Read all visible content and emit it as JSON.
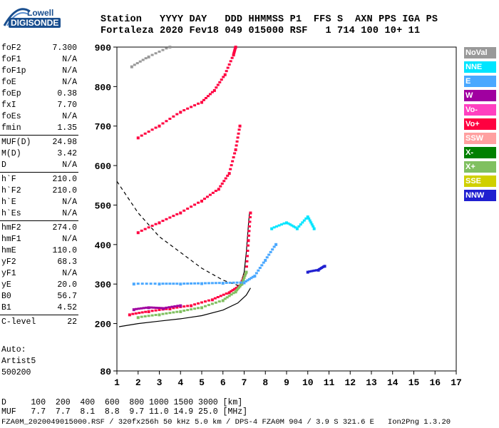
{
  "logo": {
    "line1": "Lowell",
    "line2": "DIGISONDE"
  },
  "header": {
    "line1": "Station   YYYY DAY   DDD HHMMSS P1  FFS S  AXN PPS IGA PS",
    "line2": "Fortaleza 2020 Fev18 049 015000 RSF   1 714 100 10+ 11"
  },
  "params": [
    {
      "name": "foF2",
      "value": "7.300"
    },
    {
      "name": "foF1",
      "value": "N/A"
    },
    {
      "name": "foF1p",
      "value": "N/A"
    },
    {
      "name": "foE",
      "value": "N/A"
    },
    {
      "name": "foEp",
      "value": "0.38"
    },
    {
      "name": "fxI",
      "value": "7.70"
    },
    {
      "name": "foEs",
      "value": "N/A"
    },
    {
      "name": "fmin",
      "value": "1.35"
    },
    {
      "name": "MUF(D)",
      "value": "24.98"
    },
    {
      "name": "M(D)",
      "value": "3.42"
    },
    {
      "name": "D",
      "value": "N/A"
    },
    {
      "name": "h`F",
      "value": "210.0"
    },
    {
      "name": "h`F2",
      "value": "210.0"
    },
    {
      "name": "h`E",
      "value": "N/A"
    },
    {
      "name": "h`Es",
      "value": "N/A"
    },
    {
      "name": "hmF2",
      "value": "274.0"
    },
    {
      "name": "hmF1",
      "value": "N/A"
    },
    {
      "name": "hmE",
      "value": "110.0"
    },
    {
      "name": "yF2",
      "value": "68.3"
    },
    {
      "name": "yF1",
      "value": "N/A"
    },
    {
      "name": "yE",
      "value": "20.0"
    },
    {
      "name": "B0",
      "value": "56.7"
    },
    {
      "name": "B1",
      "value": "4.52"
    },
    {
      "name": "C-level",
      "value": "22"
    }
  ],
  "autoscale": {
    "line1": "Auto:",
    "line2": "Artist5",
    "line3": "500200"
  },
  "legend": [
    {
      "label": "NoVal",
      "color": "#999999"
    },
    {
      "label": "NNE",
      "color": "#00e5ff"
    },
    {
      "label": "E",
      "color": "#4aa8ff"
    },
    {
      "label": "W",
      "color": "#a000a0"
    },
    {
      "label": "Vo-",
      "color": "#ff40c0"
    },
    {
      "label": "Vo+",
      "color": "#ff0040"
    },
    {
      "label": "SSW",
      "color": "#ffa0a0"
    },
    {
      "label": "X-",
      "color": "#008000"
    },
    {
      "label": "X+",
      "color": "#80c060"
    },
    {
      "label": "SSE",
      "color": "#d0d000"
    },
    {
      "label": "NNW",
      "color": "#2020d0"
    }
  ],
  "footer": {
    "line1": "D     100  200  400  600  800 1000 1500 3000 [km]",
    "line2": "MUF   7.7  7.7  8.1  8.8  9.7 11.0 14.9 25.0 [MHz]",
    "line3": "FZA0M_2020049015000.RSF / 320fx256h 50 kHz 5.0 km / DPS-4 FZA0M 904 / 3.9 S 321.6 E   Ion2Png 1.3.20"
  },
  "chart_data": {
    "type": "scatter",
    "title": "",
    "xlabel": "",
    "ylabel": "",
    "xlim": [
      1,
      17
    ],
    "ylim": [
      80,
      900
    ],
    "xticks": [
      "1",
      "2",
      "3",
      "4",
      "5",
      "6",
      "7",
      "8",
      "9",
      "10",
      "11",
      "12",
      "13",
      "14",
      "15",
      "16",
      "17"
    ],
    "yticks": [
      "80",
      "200",
      "300",
      "400",
      "500",
      "600",
      "700",
      "800",
      "900"
    ],
    "grid": false,
    "series": [
      {
        "name": "Vo+",
        "points": [
          [
            1.6,
            222
          ],
          [
            2.5,
            230
          ],
          [
            3.5,
            237
          ],
          [
            4.5,
            245
          ],
          [
            5.5,
            260
          ],
          [
            6.3,
            278
          ],
          [
            6.8,
            295
          ],
          [
            7.1,
            330
          ],
          [
            7.2,
            410
          ],
          [
            7.3,
            480
          ]
        ]
      },
      {
        "name": "X+",
        "points": [
          [
            2.0,
            215
          ],
          [
            3.0,
            222
          ],
          [
            4.0,
            230
          ],
          [
            5.0,
            240
          ],
          [
            6.0,
            258
          ],
          [
            6.6,
            280
          ],
          [
            6.9,
            300
          ],
          [
            7.1,
            330
          ]
        ]
      },
      {
        "name": "W",
        "points": [
          [
            1.8,
            235
          ],
          [
            2.5,
            240
          ],
          [
            3.2,
            238
          ],
          [
            4.0,
            245
          ]
        ]
      },
      {
        "name": "E",
        "points": [
          [
            1.8,
            300
          ],
          [
            3.0,
            300
          ],
          [
            4.0,
            300
          ],
          [
            5.0,
            301
          ],
          [
            6.0,
            302
          ],
          [
            7.0,
            303
          ],
          [
            7.5,
            320
          ],
          [
            8.0,
            360
          ],
          [
            8.5,
            400
          ]
        ]
      },
      {
        "name": "NNE",
        "points": [
          [
            8.3,
            440
          ],
          [
            9.0,
            455
          ],
          [
            9.5,
            440
          ],
          [
            10.0,
            470
          ],
          [
            10.3,
            440
          ]
        ]
      },
      {
        "name": "NNW",
        "points": [
          [
            10.0,
            330
          ],
          [
            10.5,
            335
          ],
          [
            10.8,
            345
          ]
        ]
      },
      {
        "name": "Vo+ 2hop",
        "points": [
          [
            2.0,
            430
          ],
          [
            3.0,
            455
          ],
          [
            4.0,
            480
          ],
          [
            5.0,
            510
          ],
          [
            5.8,
            540
          ],
          [
            6.3,
            580
          ],
          [
            6.6,
            640
          ],
          [
            6.8,
            700
          ]
        ]
      },
      {
        "name": "Vo+ 3hop",
        "points": [
          [
            2.0,
            670
          ],
          [
            3.0,
            700
          ],
          [
            4.0,
            735
          ],
          [
            5.0,
            760
          ],
          [
            5.6,
            790
          ],
          [
            6.1,
            830
          ],
          [
            6.5,
            880
          ],
          [
            6.6,
            900
          ]
        ]
      },
      {
        "name": "NoVal",
        "points": [
          [
            1.7,
            850
          ],
          [
            2.5,
            875
          ],
          [
            3.5,
            900
          ]
        ]
      }
    ],
    "curves": [
      {
        "name": "profile",
        "points": [
          [
            1.1,
            192
          ],
          [
            2.0,
            200
          ],
          [
            3.0,
            206
          ],
          [
            4.0,
            212
          ],
          [
            5.0,
            220
          ],
          [
            6.0,
            234
          ],
          [
            6.7,
            252
          ],
          [
            7.1,
            272
          ],
          [
            7.3,
            290
          ]
        ]
      },
      {
        "name": "dashed",
        "points": [
          [
            1.0,
            560
          ],
          [
            2.0,
            480
          ],
          [
            3.0,
            420
          ],
          [
            4.0,
            380
          ],
          [
            5.0,
            340
          ],
          [
            6.0,
            310
          ],
          [
            6.8,
            295
          ]
        ]
      },
      {
        "name": "trace",
        "points": [
          [
            6.8,
            295
          ],
          [
            7.0,
            330
          ],
          [
            7.1,
            380
          ],
          [
            7.2,
            450
          ],
          [
            7.25,
            480
          ]
        ]
      }
    ]
  }
}
